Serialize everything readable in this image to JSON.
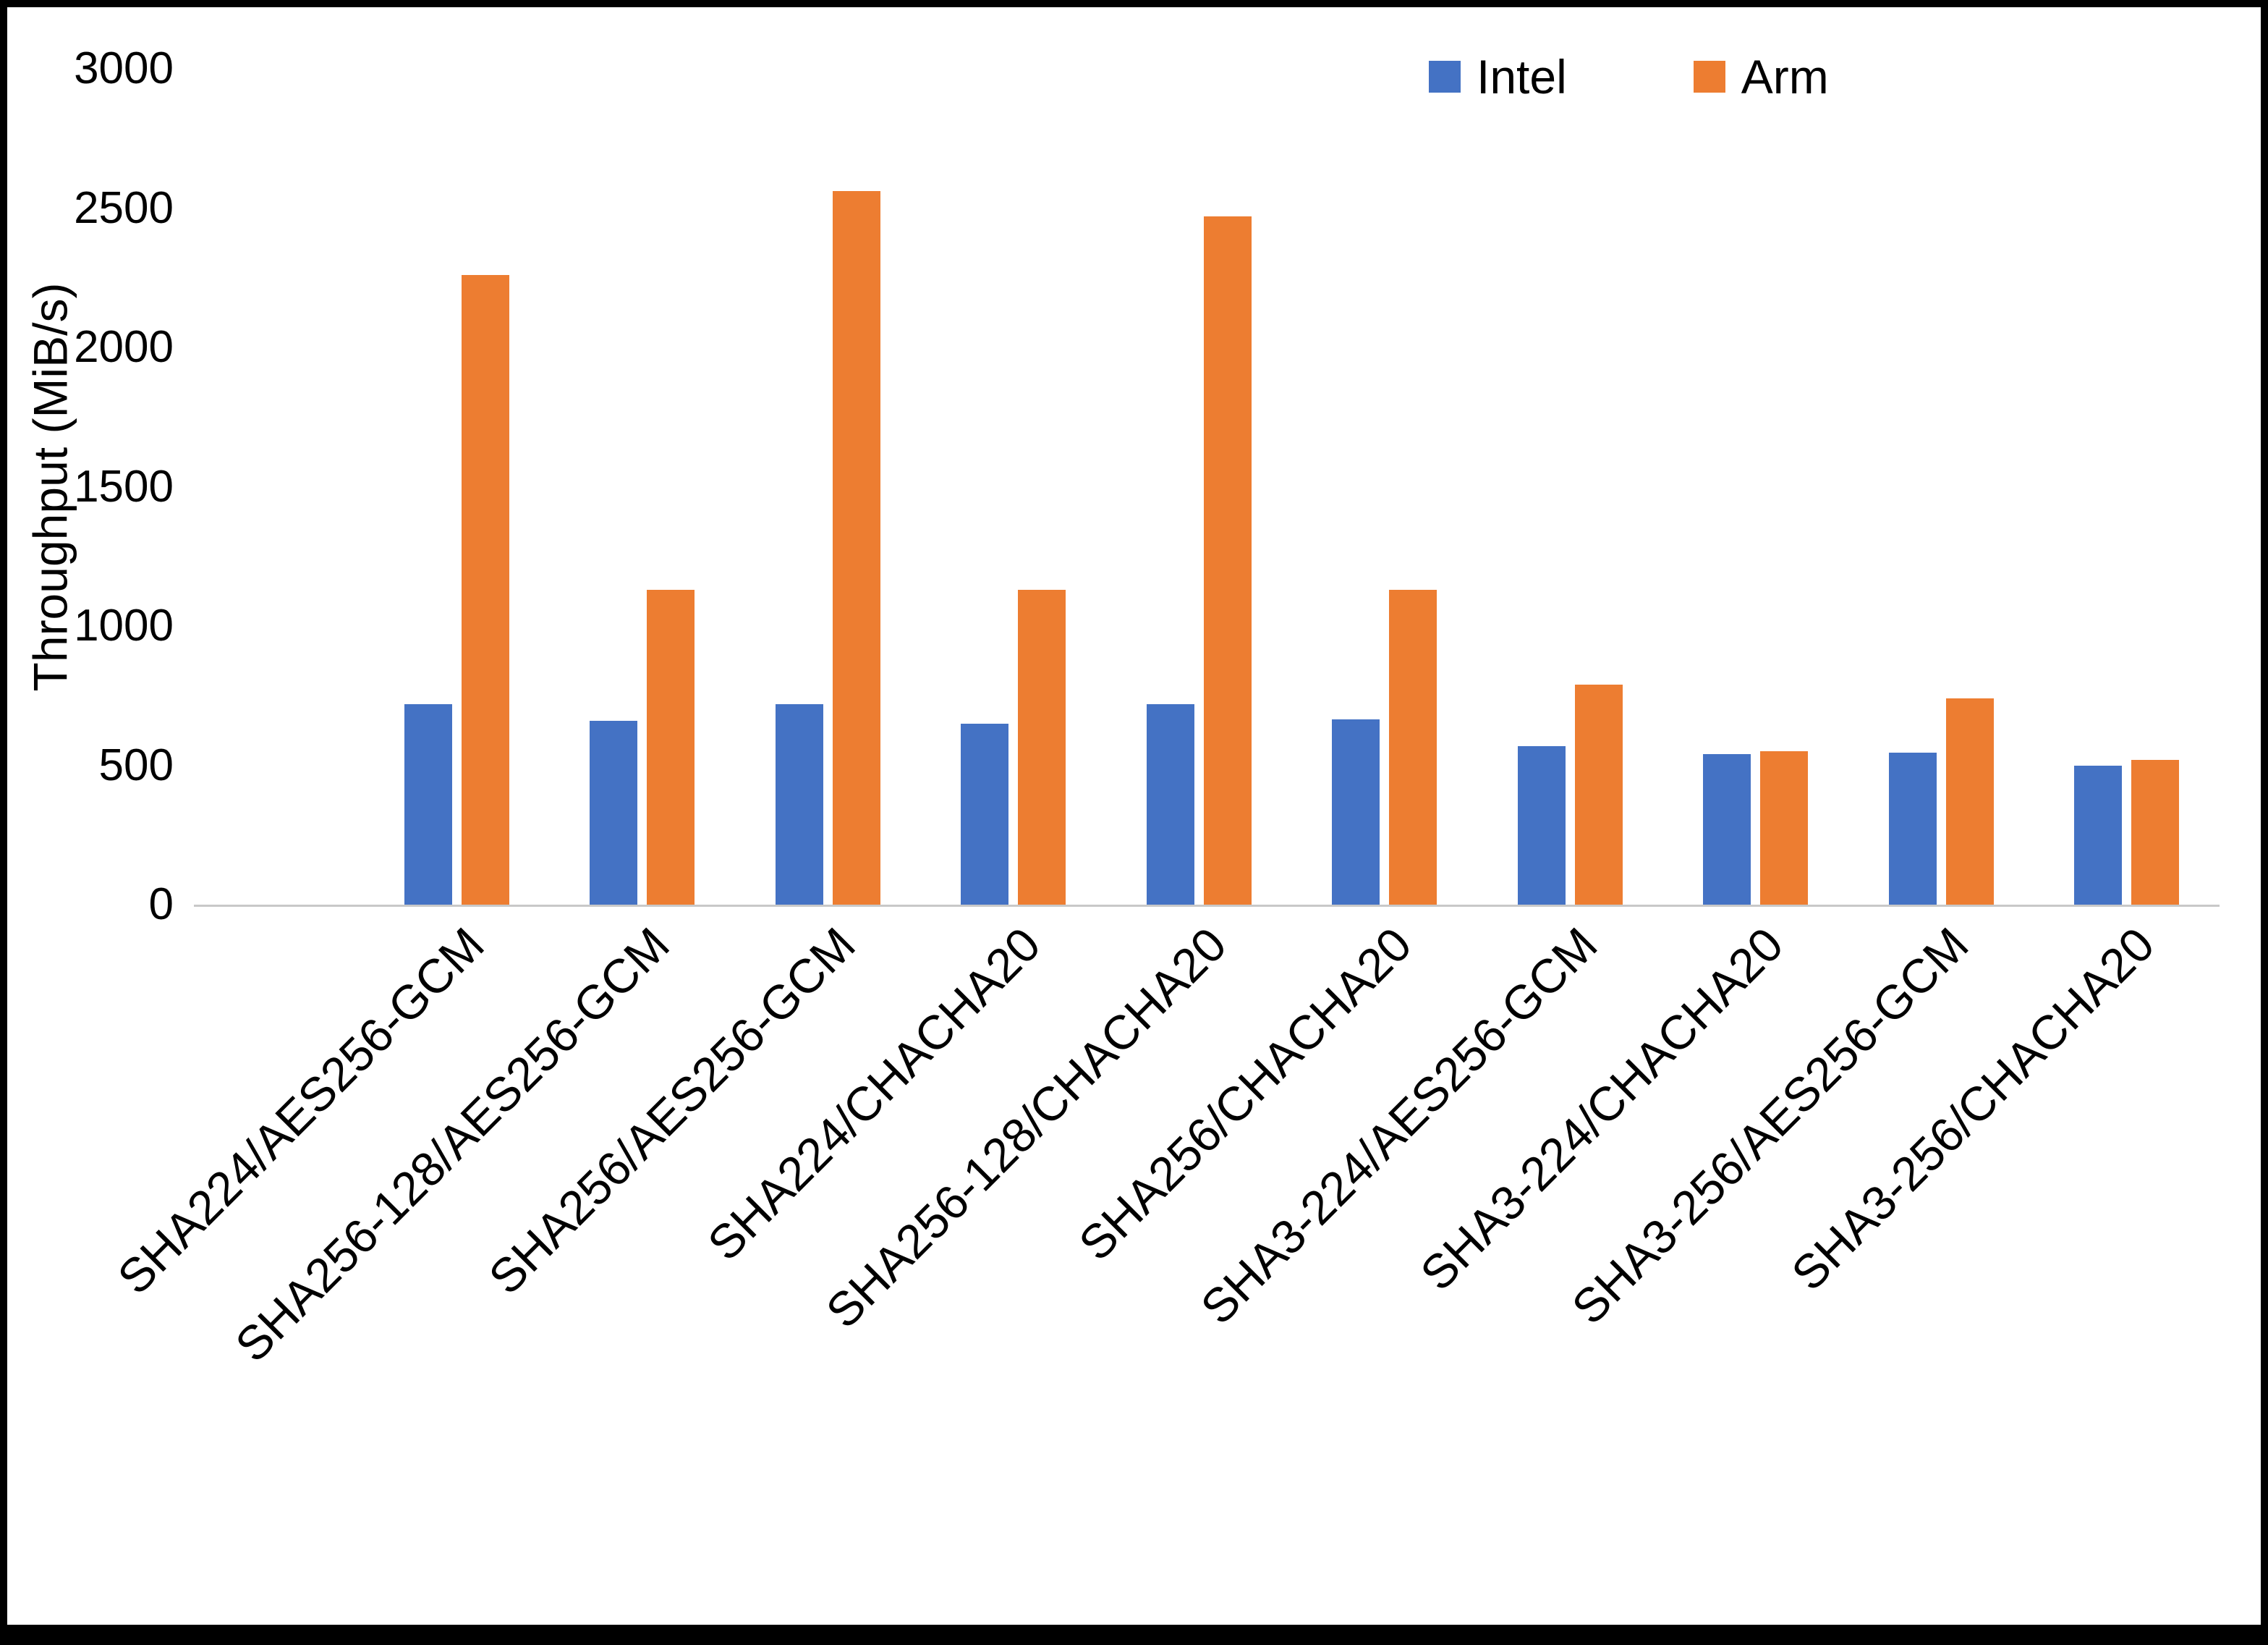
{
  "figure": {
    "background": "#ffffff",
    "border_color": "#000000",
    "axis_line_color": "#c8c8c8"
  },
  "chart_data": {
    "type": "bar",
    "title": "",
    "xlabel": "",
    "ylabel": "Throughput (MiB/s)",
    "ylim": [
      0,
      3000
    ],
    "yticks": [
      0,
      500,
      1000,
      1500,
      2000,
      2500,
      3000
    ],
    "grid": false,
    "legend_position": "top-right",
    "categories": [
      "SHA224/AES256-GCM",
      "SHA256-128/AES256-GCM",
      "SHA256/AES256-GCM",
      "SHA224/CHACHA20",
      "SHA256-128/CHACHA20",
      "SHA256/CHACHA20",
      "SHA3-224/AES256-GCM",
      "SHA3-224/CHACHA20",
      "SHA3-256/AES256-GCM",
      "SHA3-256/CHACHA20"
    ],
    "series": [
      {
        "name": "Intel",
        "color": "#4472C4",
        "values": [
          720,
          660,
          720,
          650,
          720,
          665,
          570,
          540,
          545,
          500
        ]
      },
      {
        "name": "Arm",
        "color": "#ED7D31",
        "values": [
          2260,
          1130,
          2560,
          1130,
          2470,
          1130,
          790,
          550,
          740,
          520
        ]
      }
    ]
  }
}
